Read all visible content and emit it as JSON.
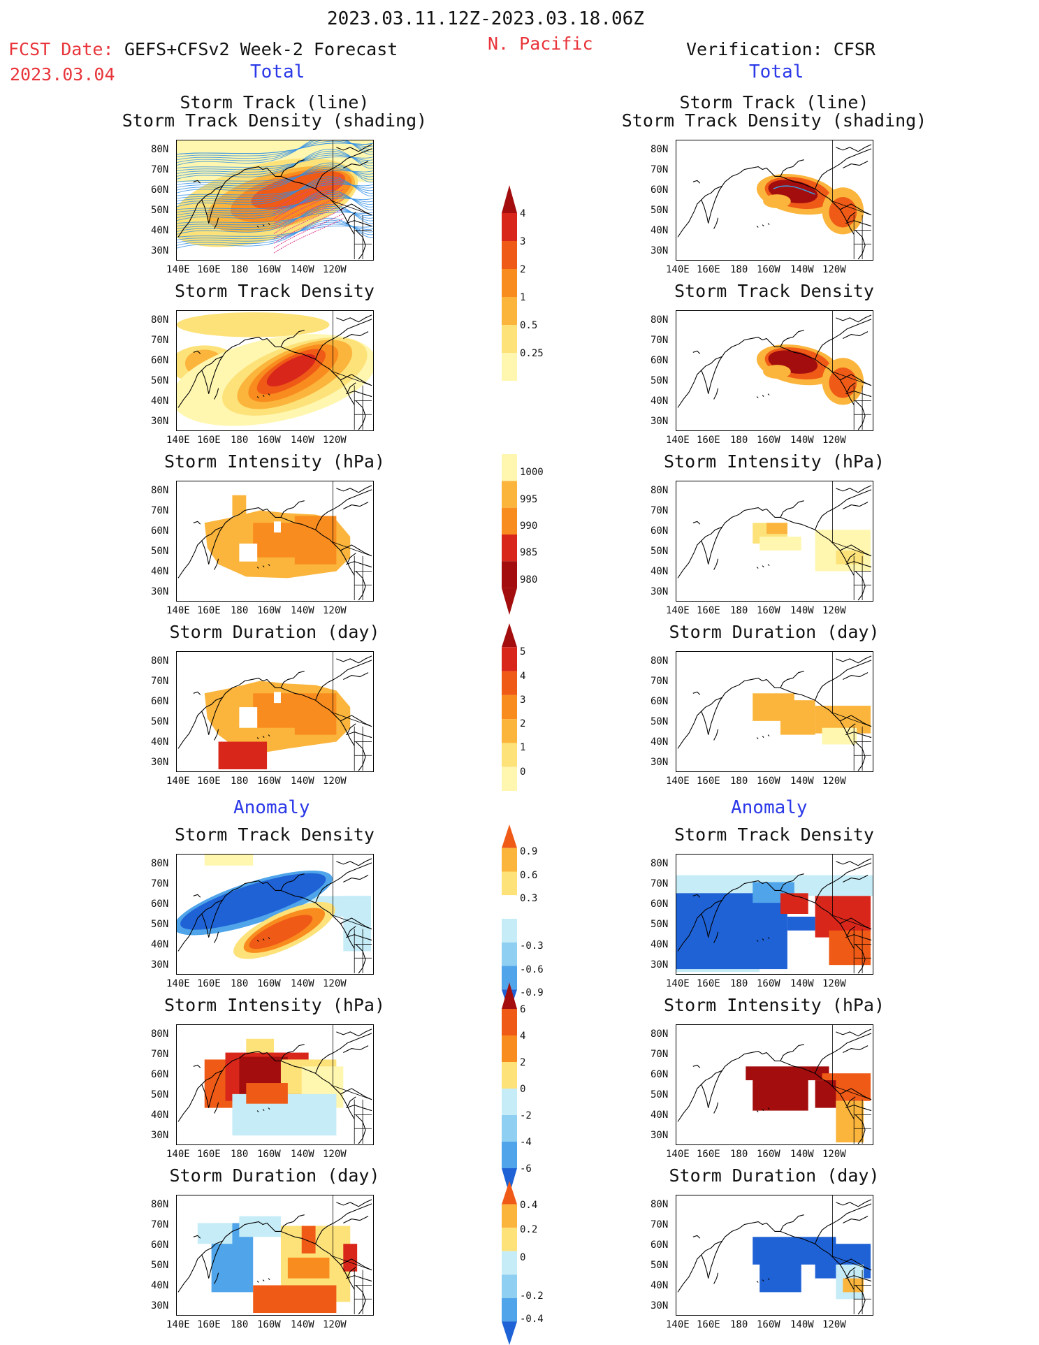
{
  "header": {
    "date_range": "2023.03.11.12Z-2023.03.18.06Z",
    "fcst_label": "FCST Date:",
    "fcst_date": "2023.03.04",
    "forecast_model": "GEFS+CFSv2 Week-2 Forecast",
    "region": "N. Pacific",
    "verification": "Verification: CFSR"
  },
  "sections": {
    "total": "Total",
    "anomaly": "Anomaly"
  },
  "axes": {
    "x_ticks": [
      "140E",
      "160E",
      "180",
      "160W",
      "140W",
      "120W"
    ],
    "y_ticks": [
      "80N",
      "70N",
      "60N",
      "50N",
      "40N",
      "30N"
    ]
  },
  "panels": {
    "track_line": [
      "Storm Track (line)",
      "Storm Track Density (shading)"
    ],
    "track_density": "Storm Track Density",
    "intensity": "Storm Intensity (hPa)",
    "duration": "Storm Duration (day)"
  },
  "colorbars": {
    "density": [
      "4",
      "3",
      "2",
      "1",
      "0.5",
      "0.25"
    ],
    "intensity": [
      "1000",
      "995",
      "990",
      "985",
      "980"
    ],
    "duration": [
      "5",
      "4",
      "3",
      "2",
      "1",
      "0"
    ],
    "anom_density": [
      "0.9",
      "0.6",
      "0.3",
      "-0.3",
      "-0.6",
      "-0.9"
    ],
    "anom_intensity": [
      "6",
      "4",
      "2",
      "0",
      "-2",
      "-4",
      "-6"
    ],
    "anom_duration": [
      "0.4",
      "0.2",
      "0",
      "-0.2",
      "-0.4"
    ]
  },
  "colors": {
    "warm": [
      "#fff7b0",
      "#fde27a",
      "#fbb53c",
      "#f98c1e",
      "#f05a17",
      "#d9261b",
      "#a30d0d"
    ],
    "cool": [
      "#c6ecf7",
      "#8fd0f2",
      "#4fa4ea",
      "#1f62d6"
    ]
  }
}
